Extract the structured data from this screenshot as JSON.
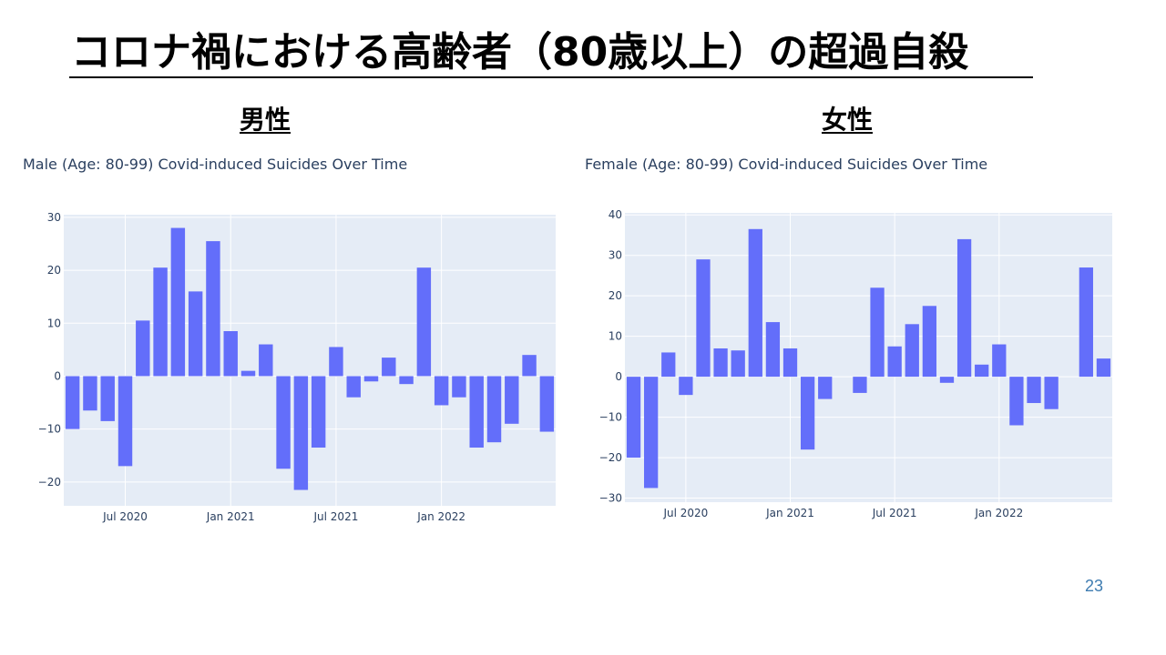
{
  "slide": {
    "title": "コロナ禍における高齢者（80歳以上）の超過自殺",
    "left_heading": "男性",
    "right_heading": "女性",
    "page_number": "23"
  },
  "colors": {
    "bar": "#636efa",
    "plot_bg": "#e5ecf6",
    "grid": "#ffffff",
    "text": "#2a3f5f"
  },
  "chart_data": [
    {
      "type": "bar",
      "title": "Male (Age: 80-99) Covid-induced Suicides Over Time",
      "ylim": [
        -24.5,
        30.5
      ],
      "yticks": [
        30,
        20,
        10,
        0,
        -10,
        -20
      ],
      "ytick_labels": [
        "30",
        "20",
        "10",
        "0",
        "−10",
        "−20"
      ],
      "xticks": [
        {
          "label": "Jul 2020",
          "index": 3.5
        },
        {
          "label": "Jan 2021",
          "index": 9.5
        },
        {
          "label": "Jul 2021",
          "index": 15.5
        },
        {
          "label": "Jan 2022",
          "index": 21.5
        }
      ],
      "values": [
        -10,
        -6.5,
        -8.5,
        -17,
        10.5,
        20.5,
        28,
        16,
        25.5,
        8.5,
        1,
        6,
        -17.5,
        -21.5,
        -13.5,
        5.5,
        -4,
        -1,
        3.5,
        -1.5,
        20.5,
        -5.5,
        -4,
        -13.5,
        -12.5,
        -9,
        4,
        -10.5
      ],
      "grid": true,
      "legend": "none"
    },
    {
      "type": "bar",
      "title": "Female (Age: 80-99) Covid-induced Suicides Over Time",
      "ylim": [
        -31,
        40.5
      ],
      "yticks": [
        40,
        30,
        20,
        10,
        0,
        -10,
        -20,
        -30
      ],
      "ytick_labels": [
        "40",
        "30",
        "20",
        "10",
        "0",
        "−10",
        "−20",
        "−30"
      ],
      "xticks": [
        {
          "label": "Jul 2020",
          "index": 3.5
        },
        {
          "label": "Jan 2021",
          "index": 9.5
        },
        {
          "label": "Jul 2021",
          "index": 15.5
        },
        {
          "label": "Jan 2022",
          "index": 21.5
        }
      ],
      "values": [
        -20,
        -27.5,
        6,
        -4.5,
        29,
        7,
        6.5,
        36.5,
        13.5,
        7,
        -18,
        -5.5,
        0,
        -4,
        22,
        7.5,
        13,
        17.5,
        -1.5,
        34,
        3,
        8,
        -12,
        -6.5,
        -8,
        0,
        27,
        4.5
      ],
      "grid": true,
      "legend": "none"
    }
  ]
}
